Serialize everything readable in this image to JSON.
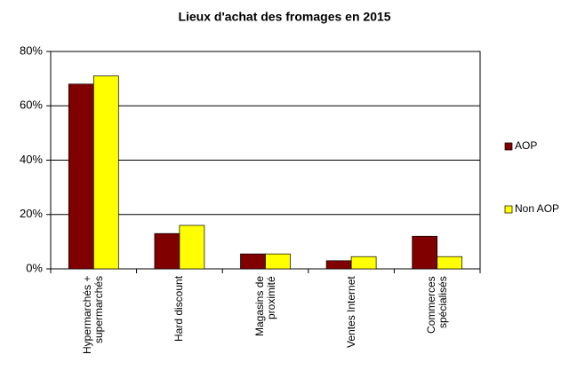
{
  "chart_data": {
    "type": "bar",
    "title": "Lieux d'achat des fromages en 2015",
    "categories": [
      "Hypermarchés + supermarchés",
      "Hard discount",
      "Magasins de proximité",
      "Ventes Internet",
      "Commerces spécialisés"
    ],
    "series": [
      {
        "name": "AOP",
        "color": "#800000",
        "values": [
          68,
          13,
          5.5,
          3,
          12
        ]
      },
      {
        "name": "Non AOP",
        "color": "#ffff00",
        "values": [
          71,
          16,
          5.5,
          4.5,
          4.5
        ]
      }
    ],
    "ylim": [
      0,
      80
    ],
    "yticks": [
      {
        "value": 0,
        "label": "0%"
      },
      {
        "value": 20,
        "label": "20%"
      },
      {
        "value": 40,
        "label": "40%"
      },
      {
        "value": 60,
        "label": "60%"
      },
      {
        "value": 80,
        "label": "80%"
      }
    ],
    "grid": true,
    "legend": "right"
  }
}
